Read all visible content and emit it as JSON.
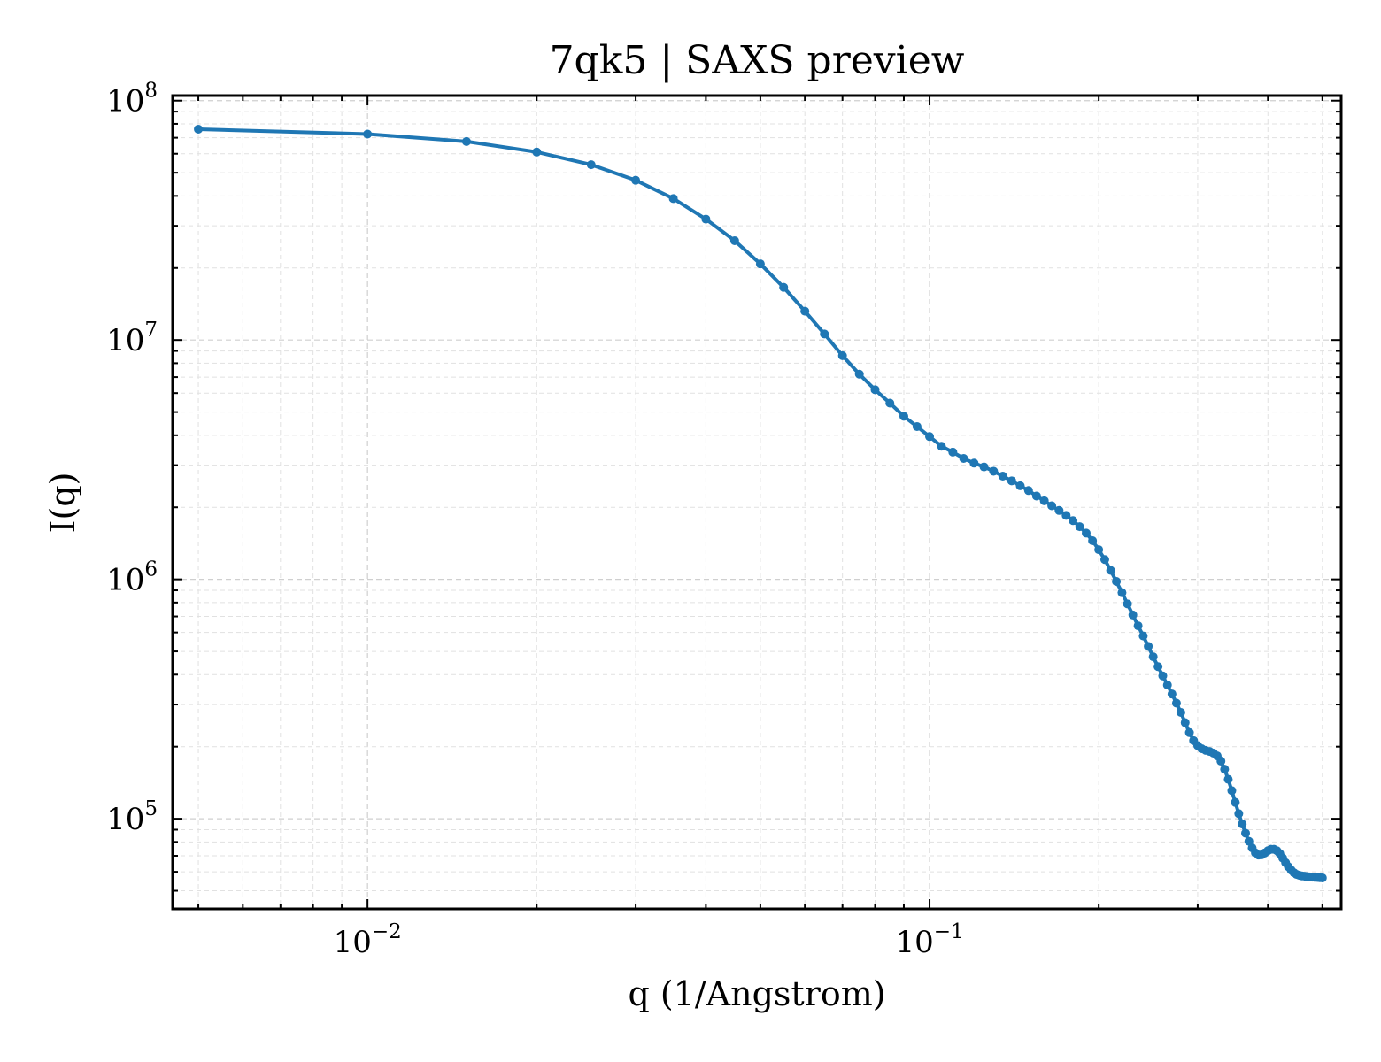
{
  "chart_data": {
    "type": "line",
    "title": "7qk5 | SAXS preview",
    "xlabel": "q (1/Angstrom)",
    "ylabel": "I(q)",
    "xscale": "log",
    "yscale": "log",
    "xlim": [
      0.0045,
      0.54
    ],
    "ylim": [
      42000,
      105000000
    ],
    "grid": true,
    "legend": "none",
    "x_ticks": [
      {
        "value": 0.01,
        "base": "10",
        "exp": "−2"
      },
      {
        "value": 0.1,
        "base": "10",
        "exp": "−1"
      }
    ],
    "y_ticks": [
      {
        "value": 100000,
        "base": "10",
        "exp": "5"
      },
      {
        "value": 1000000,
        "base": "10",
        "exp": "6"
      },
      {
        "value": 10000000,
        "base": "10",
        "exp": "7"
      },
      {
        "value": 100000000,
        "base": "10",
        "exp": "8"
      }
    ],
    "series": [
      {
        "color": "#1f77b4",
        "x": [
          0.005,
          0.01,
          0.015,
          0.02,
          0.025,
          0.03,
          0.035,
          0.04,
          0.045,
          0.05,
          0.055,
          0.06,
          0.065,
          0.07,
          0.075,
          0.08,
          0.085,
          0.09,
          0.095,
          0.1,
          0.105,
          0.11,
          0.115,
          0.12,
          0.125,
          0.13,
          0.135,
          0.14,
          0.145,
          0.15,
          0.155,
          0.16,
          0.165,
          0.17,
          0.175,
          0.18,
          0.185,
          0.19,
          0.195,
          0.2,
          0.205,
          0.21,
          0.215,
          0.22,
          0.225,
          0.23,
          0.235,
          0.24,
          0.245,
          0.25,
          0.255,
          0.26,
          0.265,
          0.27,
          0.275,
          0.28,
          0.285,
          0.29,
          0.295,
          0.3,
          0.305,
          0.31,
          0.315,
          0.32,
          0.325,
          0.33,
          0.335,
          0.34,
          0.345,
          0.35,
          0.355,
          0.36,
          0.365,
          0.37,
          0.375,
          0.38,
          0.385,
          0.39,
          0.395,
          0.4,
          0.405,
          0.41,
          0.415,
          0.42,
          0.425,
          0.43,
          0.435,
          0.44,
          0.445,
          0.45,
          0.455,
          0.46,
          0.465,
          0.47,
          0.475,
          0.48,
          0.485,
          0.49,
          0.495,
          0.5
        ],
        "y": [
          76000000,
          72500000,
          67500000,
          61000000,
          54000000,
          46500000,
          39000000,
          32000000,
          26000000,
          20800000,
          16600000,
          13200000,
          10600000,
          8600000,
          7200000,
          6200000,
          5450000,
          4800000,
          4350000,
          3950000,
          3600000,
          3400000,
          3200000,
          3060000,
          2950000,
          2830000,
          2700000,
          2580000,
          2460000,
          2350000,
          2230000,
          2130000,
          2030000,
          1940000,
          1850000,
          1760000,
          1660000,
          1560000,
          1450000,
          1330000,
          1210000,
          1090000,
          980000,
          880000,
          790000,
          710000,
          640000,
          580000,
          525000,
          475000,
          432000,
          395000,
          362000,
          332000,
          304000,
          278000,
          252000,
          229000,
          212000,
          202000,
          196000,
          193000,
          191000,
          188000,
          183000,
          174000,
          161000,
          146000,
          131000,
          117000,
          105000,
          95000,
          87000,
          80500,
          75500,
          72000,
          70500,
          70700,
          72000,
          73500,
          74500,
          74500,
          73500,
          71500,
          68500,
          65500,
          63000,
          61000,
          59500,
          58500,
          58000,
          57700,
          57500,
          57300,
          57100,
          57000,
          56900,
          56800,
          56700,
          56600
        ]
      }
    ]
  }
}
